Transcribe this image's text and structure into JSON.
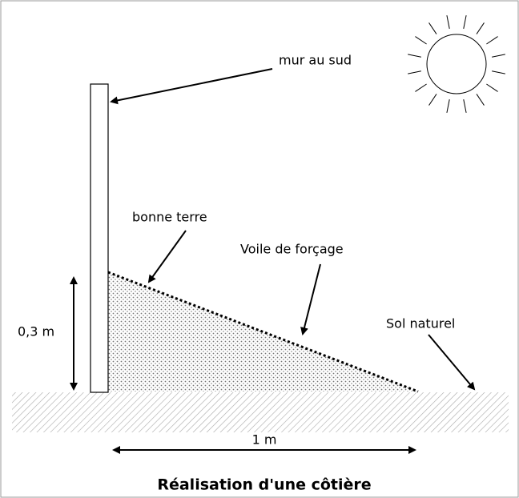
{
  "labels": {
    "wall": "mur  au sud",
    "soil": "bonne terre",
    "veil": "Voile de forçage",
    "ground": "Sol naturel",
    "height": "0,3 m",
    "width": "1 m"
  },
  "title": "Réalisation d'une côtière"
}
